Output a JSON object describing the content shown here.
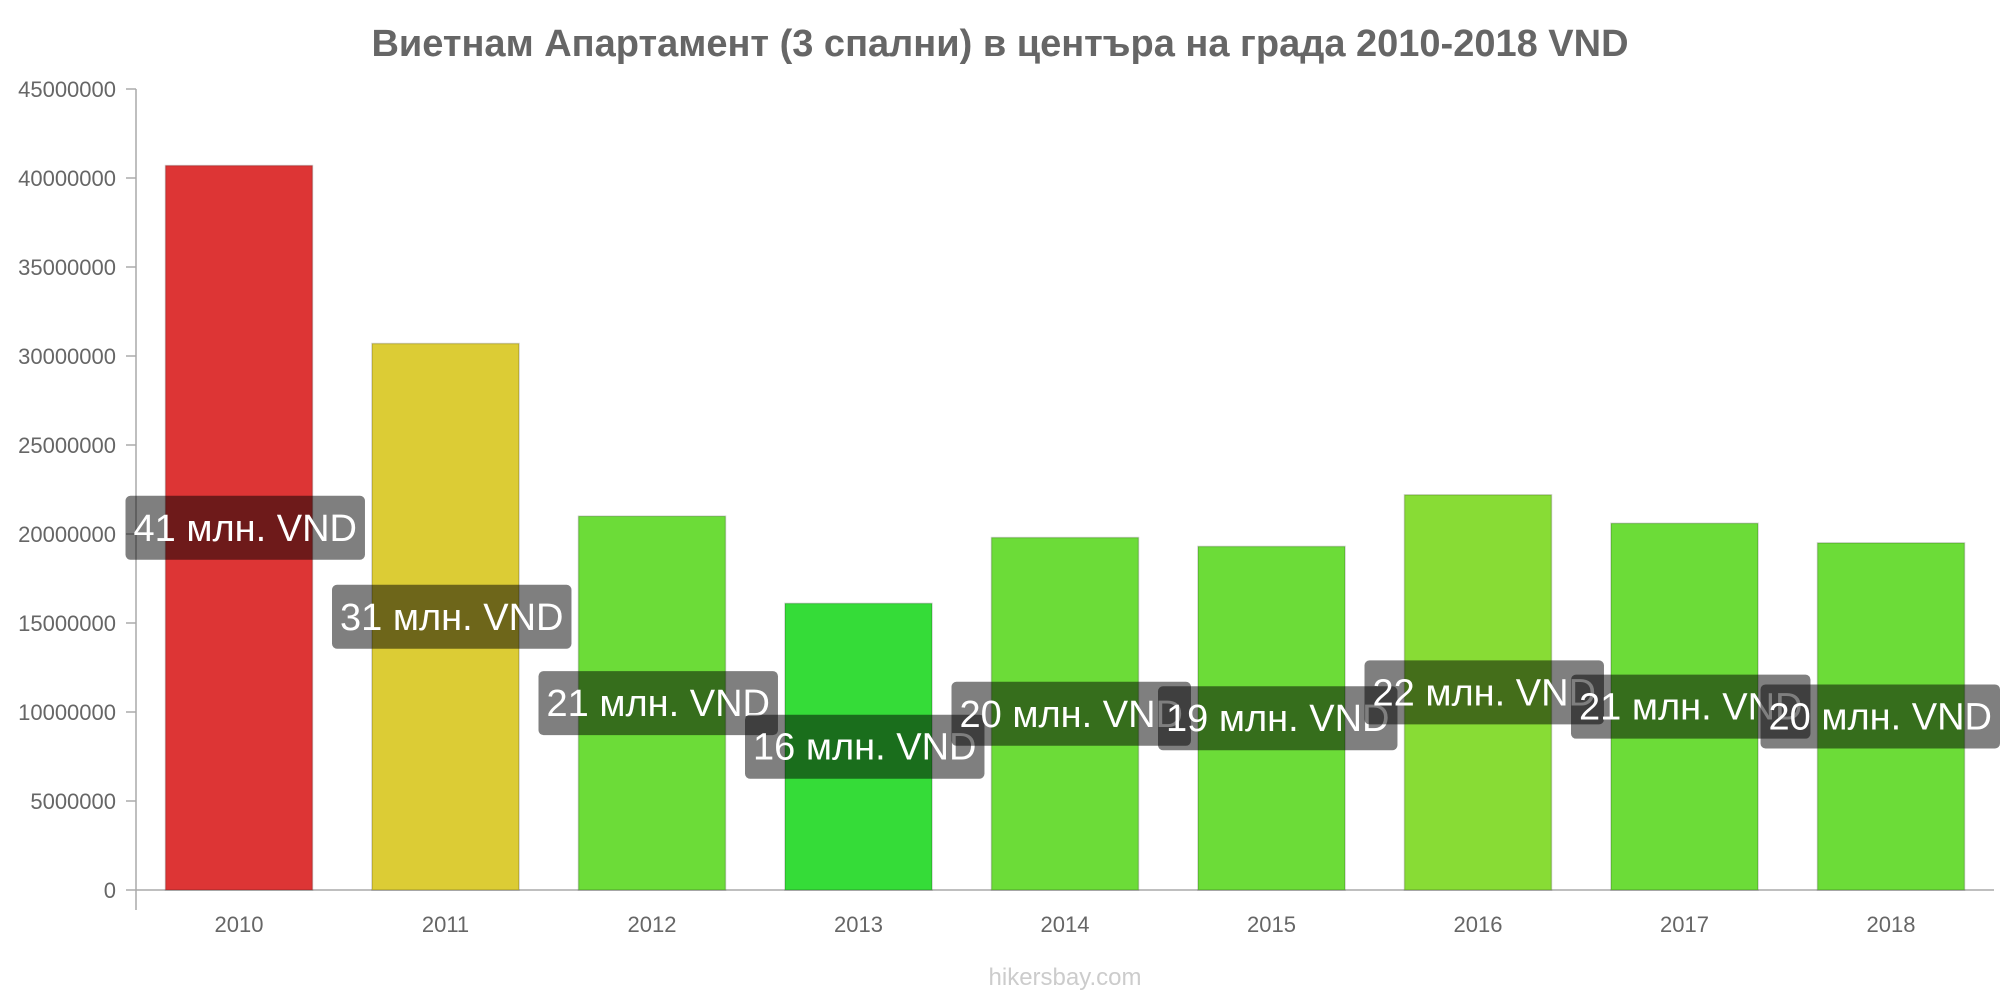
{
  "source": "hikersbay.com",
  "chart_data": {
    "type": "bar",
    "title": "Виетнам Апартамент (3 спални) в центъра на града 2010-2018 VND",
    "xlabel": "",
    "ylabel": "",
    "ylim": [
      0,
      45000000
    ],
    "yticks": [
      "0",
      "5000000",
      "10000000",
      "15000000",
      "20000000",
      "25000000",
      "30000000",
      "35000000",
      "40000000",
      "45000000"
    ],
    "grid": false,
    "categories": [
      "2010",
      "2011",
      "2012",
      "2013",
      "2014",
      "2015",
      "2016",
      "2017",
      "2018"
    ],
    "values": [
      40700000,
      30700000,
      21000000,
      16100000,
      19800000,
      19300000,
      22200000,
      20600000,
      19500000
    ],
    "data_labels": [
      "41 млн. VND",
      "31 млн. VND",
      "21 млн. VND",
      "16 млн. VND",
      "20 млн. VND",
      "19 млн. VND",
      "22 млн. VND",
      "21 млн. VND",
      "20 млн. VND"
    ],
    "colors": [
      "#dd3535",
      "#dccc35",
      "#6cdc38",
      "#35dc38",
      "#6cdc38",
      "#6cdc38",
      "#88dc35",
      "#6cdc38",
      "#6cdc38"
    ]
  }
}
